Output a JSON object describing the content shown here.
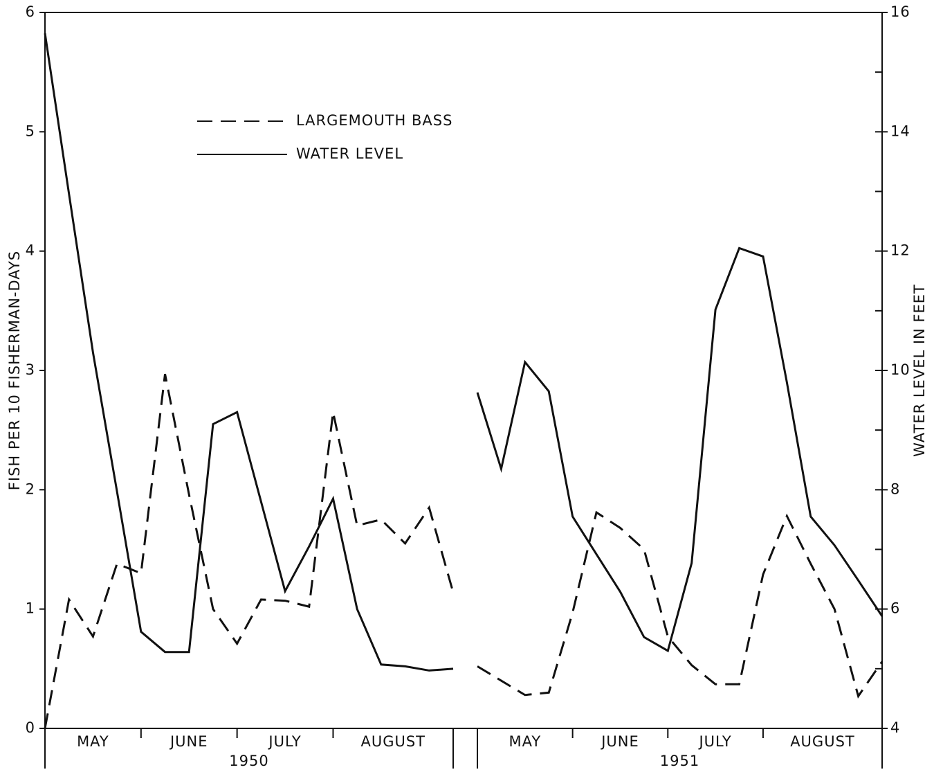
{
  "chart_data": [
    {
      "type": "line",
      "year": "1950",
      "months": [
        "MAY",
        "JUNE",
        "JULY",
        "AUGUST"
      ],
      "ylabel": "FISH PER 10 FISHERMAN-DAYS",
      "categories": [
        null,
        null,
        null,
        null,
        null,
        null,
        null,
        null,
        null,
        null,
        null,
        null,
        null,
        null,
        null,
        null,
        null,
        null
      ],
      "series": [
        {
          "name": "LARGEMOUTH BASS",
          "color": "#111111",
          "dash": true,
          "axis": "y",
          "values": [
            0.0,
            1.08,
            0.77,
            1.38,
            1.3,
            2.97,
            1.96,
            1.0,
            0.71,
            1.08,
            1.07,
            1.02,
            2.65,
            1.7,
            1.75,
            1.55,
            1.85,
            1.14
          ]
        },
        {
          "name": "WATER LEVEL",
          "color": "#111111",
          "dash": false,
          "axis": "y2",
          "values": [
            15.65,
            12.96,
            10.3,
            7.97,
            5.62,
            5.28,
            5.28,
            9.1,
            9.3,
            7.8,
            6.3,
            7.05,
            7.85,
            6.0,
            5.07,
            5.04,
            4.97,
            5.0
          ]
        }
      ],
      "ylim": [
        0,
        6
      ],
      "yticks": [
        0,
        1,
        2,
        3,
        4,
        5,
        6
      ],
      "y2lim": [
        4,
        16
      ]
    },
    {
      "type": "line",
      "year": "1951",
      "months": [
        "MAY",
        "JUNE",
        "JULY",
        "AUGUST"
      ],
      "y2label": "WATER LEVEL IN FEET",
      "categories": [
        null,
        null,
        null,
        null,
        null,
        null,
        null,
        null,
        null,
        null,
        null,
        null,
        null,
        null,
        null,
        null,
        null,
        null
      ],
      "series": [
        {
          "color": "#111111",
          "dash": true,
          "axis": "y",
          "values": [
            0.52,
            0.4,
            0.28,
            0.3,
            0.97,
            1.81,
            1.68,
            1.5,
            0.77,
            0.53,
            0.37,
            0.37,
            1.29,
            1.78,
            1.38,
            1.0,
            0.27,
            0.56
          ]
        },
        {
          "color": "#111111",
          "dash": false,
          "axis": "y2",
          "values": [
            9.63,
            8.35,
            10.14,
            9.65,
            7.55,
            6.92,
            6.29,
            5.53,
            5.3,
            6.77,
            11.02,
            12.05,
            11.91,
            9.8,
            7.55,
            7.07,
            6.48,
            5.88
          ]
        }
      ],
      "ylim": [
        0,
        6
      ],
      "y2lim": [
        4,
        16
      ],
      "y2ticks": [
        4,
        6,
        8,
        10,
        12,
        14,
        16
      ],
      "y2minor_ticks": [
        5,
        7,
        9,
        11,
        13,
        15
      ]
    }
  ]
}
